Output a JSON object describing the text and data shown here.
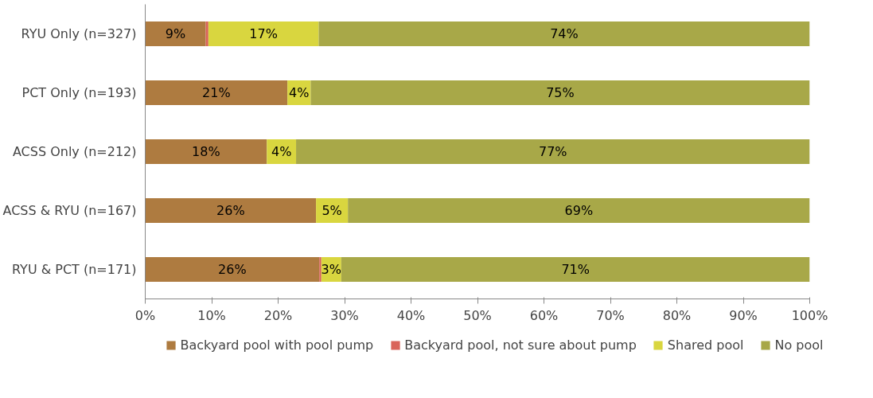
{
  "chart_data": {
    "type": "bar",
    "orientation": "horizontal",
    "stacked": true,
    "categories": [
      "RYU Only (n=327)",
      "PCT Only (n=193)",
      "ACSS Only (n=212)",
      "ACSS & RYU (n=167)",
      "RYU & PCT (n=171)"
    ],
    "series": [
      {
        "name": "Backyard pool with pool pump",
        "color": "#ae7b40",
        "values": [
          9.1,
          21.4,
          18.3,
          25.7,
          26.2
        ],
        "value_labels": [
          "9%",
          "21%",
          "18%",
          "26%",
          "26%"
        ]
      },
      {
        "name": "Backyard pool, not sure about pump",
        "color": "#d9645a",
        "values": [
          0.4,
          0,
          0,
          0,
          0.3
        ],
        "value_labels": [
          null,
          null,
          null,
          null,
          null
        ]
      },
      {
        "name": "Shared pool",
        "color": "#d9d63f",
        "values": [
          16.6,
          3.5,
          4.4,
          4.8,
          3.0
        ],
        "value_labels": [
          "17%",
          "4%",
          "4%",
          "5%",
          "3%"
        ]
      },
      {
        "name": "No pool",
        "color": "#a8a848",
        "values": [
          73.9,
          75.1,
          77.3,
          69.5,
          70.5
        ],
        "value_labels": [
          "74%",
          "75%",
          "77%",
          "69%",
          "71%"
        ]
      }
    ],
    "xlim": [
      0,
      100
    ],
    "xticks": [
      {
        "value": 0,
        "label": "0%"
      },
      {
        "value": 10,
        "label": "10%"
      },
      {
        "value": 20,
        "label": "20%"
      },
      {
        "value": 30,
        "label": "30%"
      },
      {
        "value": 40,
        "label": "40%"
      },
      {
        "value": 50,
        "label": "50%"
      },
      {
        "value": 60,
        "label": "60%"
      },
      {
        "value": 70,
        "label": "70%"
      },
      {
        "value": 80,
        "label": "80%"
      },
      {
        "value": 90,
        "label": "90%"
      },
      {
        "value": 100,
        "label": "100%"
      }
    ],
    "grid": false,
    "legend": "bottom"
  }
}
